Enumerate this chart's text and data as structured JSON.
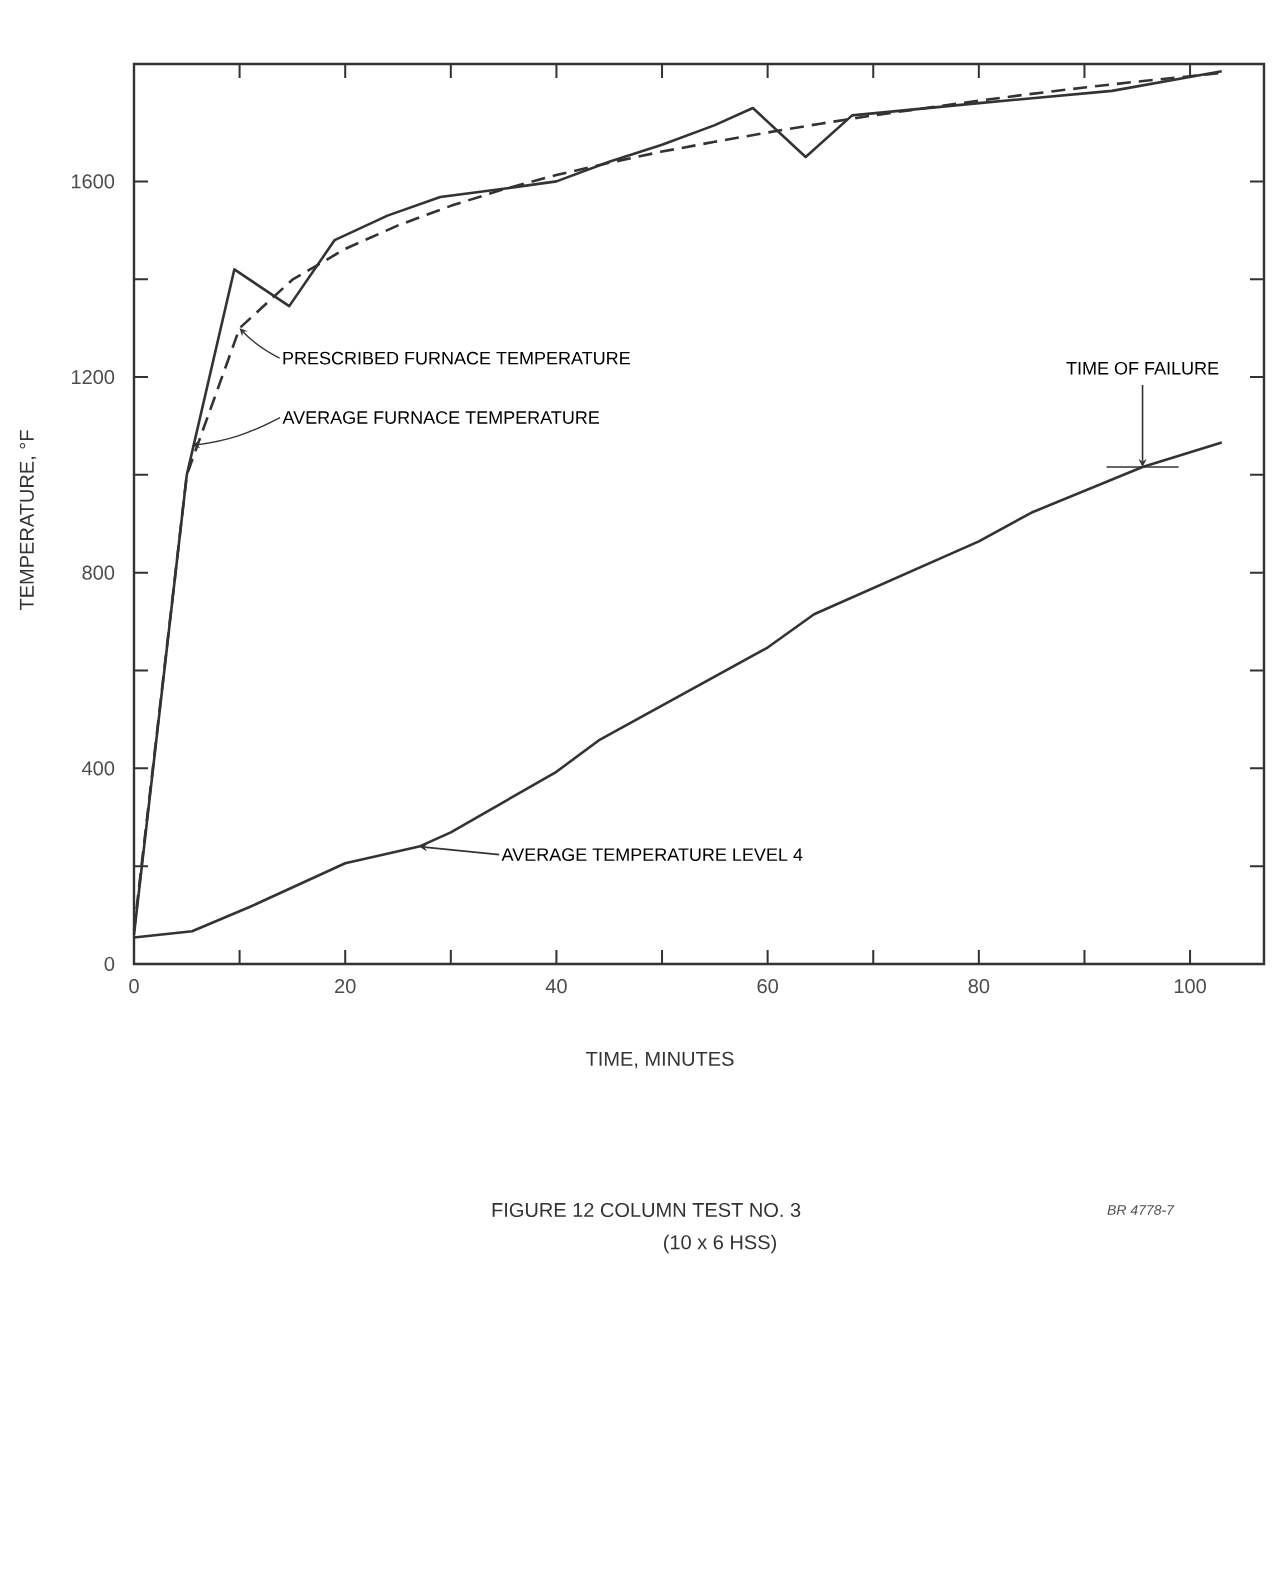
{
  "chart_data": {
    "type": "line",
    "title": "FIGURE 12 COLUMN TEST NO. 3",
    "subtitle": "(10 x 6 HSS)",
    "xlabel": "TIME, MINUTES",
    "ylabel": "TEMPERATURE, °F",
    "xlim": [
      0,
      107
    ],
    "ylim": [
      0,
      1840
    ],
    "xticks": [
      0,
      {
        "value": 10,
        "label": null
      },
      20,
      {
        "value": 30,
        "label": null
      },
      40,
      {
        "value": 50,
        "label": null
      },
      60,
      {
        "value": 70,
        "label": null
      },
      80,
      {
        "value": 90,
        "label": null
      },
      100
    ],
    "yticks": [
      0,
      {
        "value": 200,
        "label": null
      },
      400,
      {
        "value": 600,
        "label": null
      },
      800,
      {
        "value": 1000,
        "label": null
      },
      1200,
      {
        "value": 1400,
        "label": null
      },
      1600
    ],
    "series": [
      {
        "color": "#333333",
        "line_style": "dashed",
        "x": [
          0,
          5,
          10,
          15,
          20,
          25,
          30,
          35,
          40,
          45,
          50,
          55,
          60,
          65,
          70,
          75,
          80,
          85,
          90,
          95,
          100,
          103
        ],
        "values": [
          68,
          1000,
          1300,
          1399,
          1462,
          1510,
          1550,
          1584,
          1613,
          1638,
          1661,
          1681,
          1700,
          1718,
          1735,
          1750,
          1765,
          1779,
          1792,
          1804,
          1815,
          1822
        ]
      },
      {
        "color": "#333333",
        "line_style": "solid",
        "x": [
          0,
          5,
          9.5,
          14.7,
          19,
          24,
          29,
          35,
          40,
          45,
          50,
          55,
          58.6,
          63.6,
          68,
          80,
          92.6,
          103
        ],
        "values": [
          60,
          1000,
          1420,
          1345,
          1480,
          1530,
          1568,
          1585,
          1600,
          1640,
          1675,
          1715,
          1750,
          1650,
          1735,
          1760,
          1785,
          1825
        ]
      },
      {
        "color": "#333333",
        "line_style": "solid",
        "x": [
          0,
          5.5,
          11,
          20,
          27,
          30,
          40,
          44,
          60,
          64.4,
          80,
          85,
          95.5,
          103
        ],
        "values": [
          54,
          67,
          117,
          206,
          240,
          269,
          393,
          457,
          647,
          715,
          864,
          923,
          1016,
          1066
        ]
      }
    ],
    "annotations": [
      {
        "text": "PRESCRIBED FURNACE TEMPERATURE",
        "x": 10,
        "y": 1300
      },
      {
        "text": "AVERAGE FURNACE TEMPERATURE",
        "x": 5.5,
        "y": 1060
      },
      {
        "text": "AVERAGE TEMPERATURE LEVEL 4",
        "x": 27,
        "y": 240
      },
      {
        "text": "TIME OF FAILURE",
        "x": 95.5,
        "y": 1016
      },
      "BR 4778-7"
    ]
  }
}
